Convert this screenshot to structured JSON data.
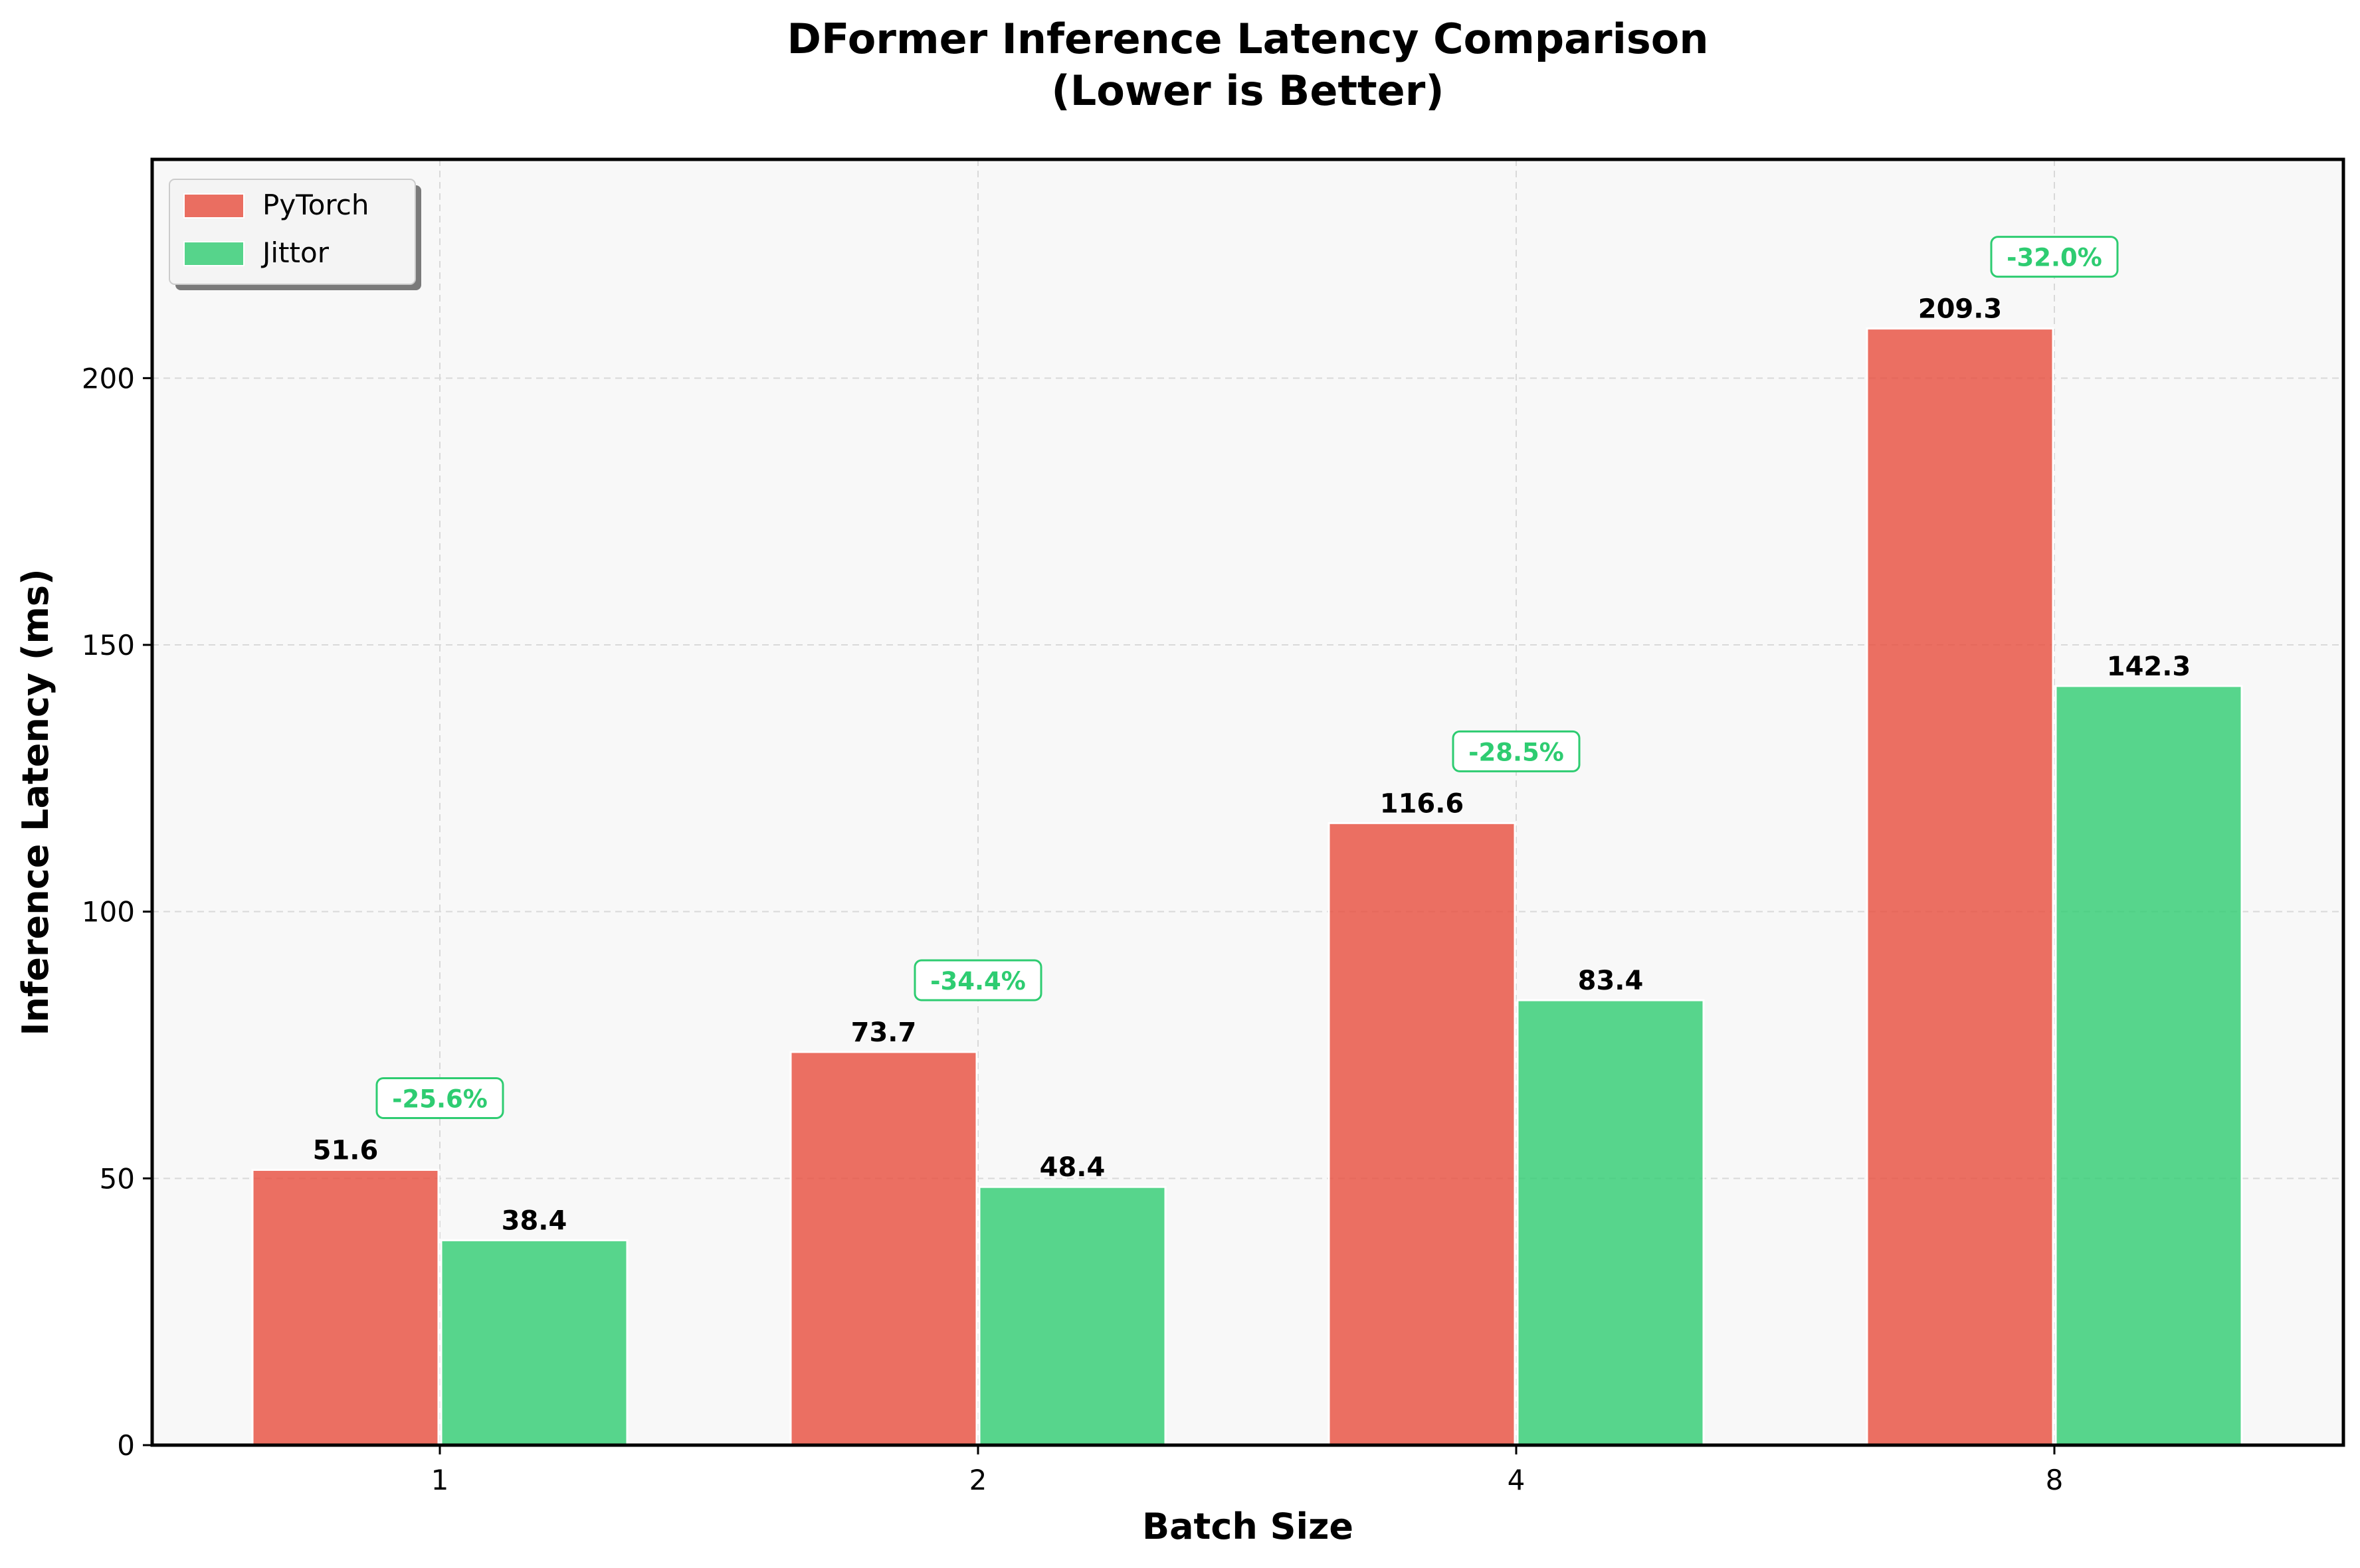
{
  "chart_data": {
    "type": "bar",
    "title": "DFormer Inference Latency Comparison\n(Lower is Better)",
    "title_lines": [
      "DFormer Inference Latency Comparison",
      "(Lower is Better)"
    ],
    "xlabel": "Batch Size",
    "ylabel": "Inference Latency (ms)",
    "categories": [
      "1",
      "2",
      "4",
      "8"
    ],
    "ylim": [
      0,
      241
    ],
    "yticks": [
      0,
      50,
      100,
      150,
      200
    ],
    "grid": true,
    "legend_position": "top-left",
    "series": [
      {
        "name": "PyTorch",
        "color": "#e74c3c",
        "values": [
          51.6,
          73.7,
          116.6,
          209.3
        ]
      },
      {
        "name": "Jittor",
        "color": "#2ecc71",
        "values": [
          38.4,
          48.4,
          83.4,
          142.3
        ]
      }
    ],
    "value_labels": {
      "PyTorch": [
        "51.6",
        "73.7",
        "116.6",
        "209.3"
      ],
      "Jittor": [
        "38.4",
        "48.4",
        "83.4",
        "142.3"
      ]
    },
    "annotations": [
      "-25.6%",
      "-34.4%",
      "-28.5%",
      "-32.0%"
    ],
    "annotation_color": "#2ecc71",
    "plot_background": "#f8f8f8"
  }
}
